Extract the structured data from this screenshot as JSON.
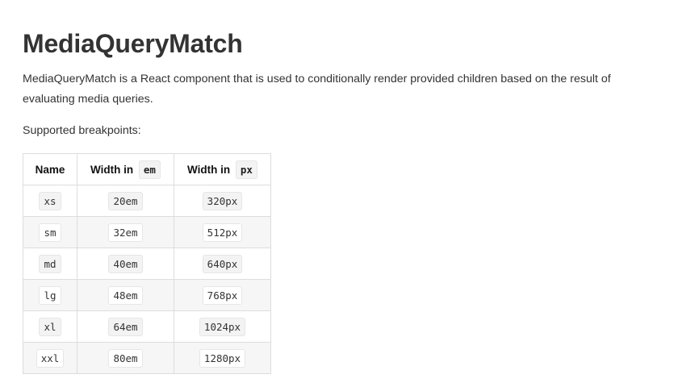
{
  "title": "MediaQueryMatch",
  "description": "MediaQueryMatch is a React component that is used to conditionally render provided children based on the result of evaluating media queries.",
  "supported_label": "Supported breakpoints:",
  "table": {
    "headers": {
      "name": "Name",
      "width_em_prefix": "Width in",
      "width_em_unit": "em",
      "width_px_prefix": "Width in",
      "width_px_unit": "px"
    },
    "rows": [
      {
        "name": "xs",
        "em": "20em",
        "px": "320px"
      },
      {
        "name": "sm",
        "em": "32em",
        "px": "512px"
      },
      {
        "name": "md",
        "em": "40em",
        "px": "640px"
      },
      {
        "name": "lg",
        "em": "48em",
        "px": "768px"
      },
      {
        "name": "xl",
        "em": "64em",
        "px": "1024px"
      },
      {
        "name": "xxl",
        "em": "80em",
        "px": "1280px"
      }
    ]
  }
}
